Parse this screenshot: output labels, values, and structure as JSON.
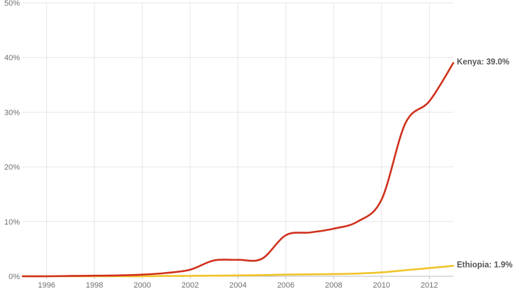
{
  "chart_data": {
    "type": "line",
    "title": "",
    "xlabel": "",
    "ylabel": "",
    "xlim": [
      1995,
      2013
    ],
    "ylim": [
      0,
      50
    ],
    "x_ticks": [
      1996,
      1998,
      2000,
      2002,
      2004,
      2006,
      2008,
      2010,
      2012
    ],
    "x_tick_labels": [
      "1996",
      "1998",
      "2000",
      "2002",
      "2004",
      "2006",
      "2008",
      "2010",
      "2012"
    ],
    "y_ticks": [
      0,
      10,
      20,
      30,
      40,
      50
    ],
    "y_tick_labels": [
      "0%",
      "10%",
      "20%",
      "30%",
      "40%",
      "50%"
    ],
    "grid": true,
    "legend": "end-of-line labels",
    "x": [
      1995,
      1996,
      1997,
      1998,
      1999,
      2000,
      2001,
      2002,
      2003,
      2004,
      2005,
      2006,
      2007,
      2008,
      2009,
      2010,
      2011,
      2012,
      2013
    ],
    "series": [
      {
        "name": "Kenya",
        "end_label": "Kenya: 39.0%",
        "color": "#d0311c",
        "values": [
          0.0,
          0.0,
          0.05,
          0.1,
          0.15,
          0.3,
          0.6,
          1.2,
          2.9,
          3.0,
          3.2,
          7.5,
          8.0,
          8.7,
          10.0,
          14.0,
          28.0,
          32.0,
          39.0
        ]
      },
      {
        "name": "Ethiopia",
        "end_label": "Ethiopia: 1.9%",
        "color": "#f0c429",
        "values": [
          0.0,
          0.0,
          0.0,
          0.0,
          0.0,
          0.0,
          0.05,
          0.07,
          0.1,
          0.15,
          0.2,
          0.3,
          0.35,
          0.4,
          0.5,
          0.7,
          1.1,
          1.5,
          1.9
        ]
      }
    ]
  }
}
